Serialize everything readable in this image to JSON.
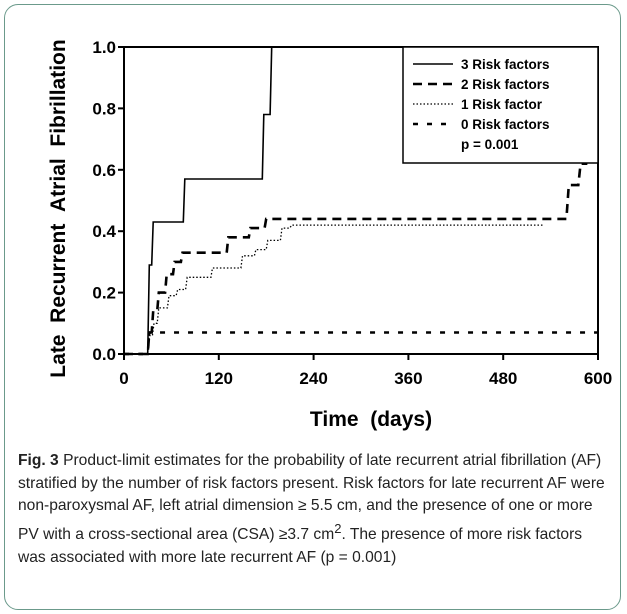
{
  "chart_data": {
    "type": "line",
    "step": true,
    "xlabel": "Time (days)",
    "ylabel": "Late Recurrent Atrial Fibrillation",
    "xlim": [
      0,
      600
    ],
    "ylim": [
      0,
      1.0
    ],
    "xticks": [
      "0",
      "120",
      "240",
      "360",
      "480",
      "600"
    ],
    "yticks": [
      "0.0",
      "0.2",
      "0.4",
      "0.6",
      "0.8",
      "1.0"
    ],
    "grid": false,
    "legend_position": "top-right",
    "annotation": "p = 0.001",
    "series": [
      {
        "name": "3 Risk factors",
        "dash": "solid",
        "points": [
          [
            0,
            0
          ],
          [
            30,
            0
          ],
          [
            32,
            0.29
          ],
          [
            35,
            0.29
          ],
          [
            37,
            0.43
          ],
          [
            75,
            0.43
          ],
          [
            77,
            0.57
          ],
          [
            175,
            0.57
          ],
          [
            177,
            0.78
          ],
          [
            185,
            0.78
          ],
          [
            187,
            1.0
          ]
        ]
      },
      {
        "name": "2 Risk factors",
        "dash": "dashed",
        "points": [
          [
            0,
            0
          ],
          [
            30,
            0
          ],
          [
            32,
            0.07
          ],
          [
            35,
            0.07
          ],
          [
            37,
            0.14
          ],
          [
            42,
            0.14
          ],
          [
            44,
            0.2
          ],
          [
            52,
            0.2
          ],
          [
            54,
            0.26
          ],
          [
            62,
            0.26
          ],
          [
            64,
            0.3
          ],
          [
            72,
            0.3
          ],
          [
            74,
            0.33
          ],
          [
            130,
            0.33
          ],
          [
            132,
            0.38
          ],
          [
            158,
            0.38
          ],
          [
            160,
            0.41
          ],
          [
            178,
            0.41
          ],
          [
            180,
            0.44
          ],
          [
            560,
            0.44
          ],
          [
            563,
            0.55
          ],
          [
            575,
            0.55
          ],
          [
            578,
            0.62
          ],
          [
            585,
            0.62
          ],
          [
            587,
            0.7
          ]
        ]
      },
      {
        "name": "1 Risk factor",
        "dash": "dotted",
        "points": [
          [
            0,
            0
          ],
          [
            30,
            0
          ],
          [
            32,
            0.06
          ],
          [
            36,
            0.06
          ],
          [
            38,
            0.1
          ],
          [
            42,
            0.1
          ],
          [
            44,
            0.15
          ],
          [
            55,
            0.15
          ],
          [
            57,
            0.19
          ],
          [
            66,
            0.19
          ],
          [
            68,
            0.21
          ],
          [
            78,
            0.21
          ],
          [
            80,
            0.25
          ],
          [
            110,
            0.25
          ],
          [
            112,
            0.28
          ],
          [
            148,
            0.28
          ],
          [
            150,
            0.32
          ],
          [
            165,
            0.32
          ],
          [
            167,
            0.34
          ],
          [
            180,
            0.34
          ],
          [
            182,
            0.37
          ],
          [
            198,
            0.37
          ],
          [
            200,
            0.41
          ],
          [
            210,
            0.41
          ],
          [
            212,
            0.42
          ],
          [
            530,
            0.42
          ]
        ]
      },
      {
        "name": "0 Risk factors",
        "dash": "short-dashed",
        "points": [
          [
            0,
            0
          ],
          [
            30,
            0
          ],
          [
            32,
            0.07
          ],
          [
            600,
            0.07
          ]
        ]
      }
    ]
  },
  "caption": {
    "label": "Fig. 3",
    "line1_pre": " Product-limit estimates for the probability of late recurrent atrial fibrillation (AF) stratified by the number of risk factors present. Risk factors for late recurrent AF were non-paroxysmal AF, left atrial dimension ≥ 5.5 cm, and the presence of one or more PV with a cross-sectional area (CSA) ≥3.7 cm",
    "sup": "2",
    "line1_post": ". The presence of more risk factors was associated with more late recurrent AF (p = 0.001)"
  }
}
